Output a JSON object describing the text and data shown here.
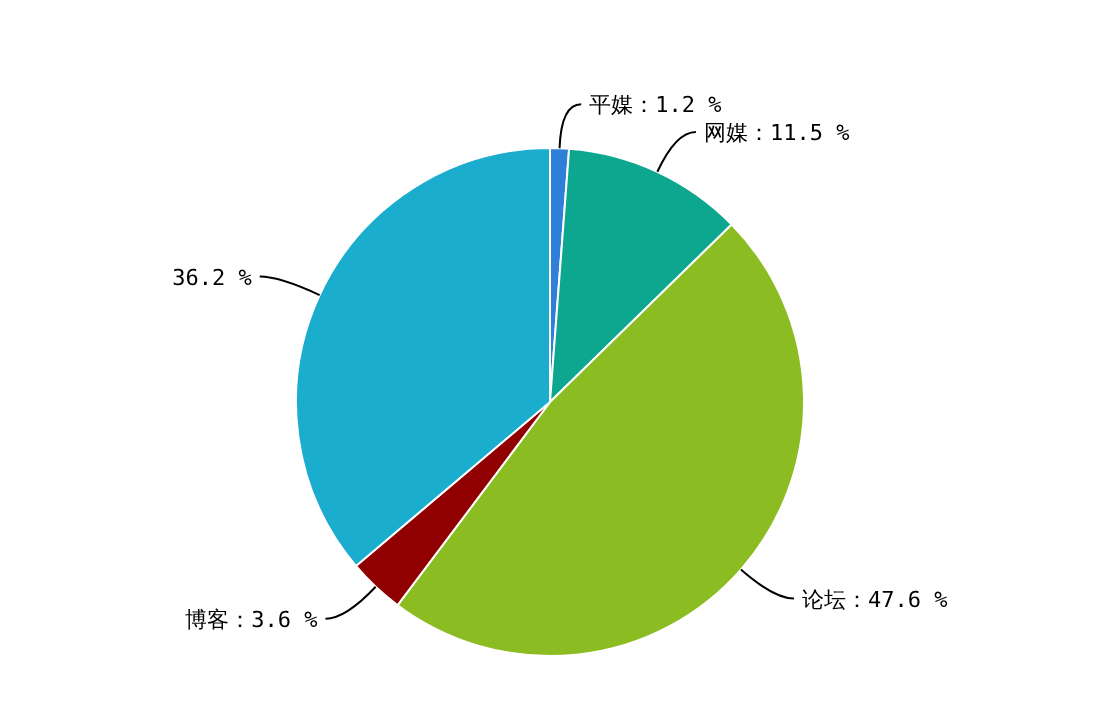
{
  "chart_data": {
    "type": "pie",
    "categories": [
      "平媒",
      "网媒",
      "论坛",
      "博客",
      null
    ],
    "values": [
      1.2,
      11.5,
      47.6,
      3.6,
      36.2
    ],
    "value_labels": [
      "1.2 %",
      "11.5 %",
      "47.6 %",
      "3.6 %",
      "36.2 %"
    ],
    "colors": [
      "#2f7ed8",
      "#0da78f",
      "#8bbc21",
      "#910000",
      "#1aadce"
    ]
  }
}
